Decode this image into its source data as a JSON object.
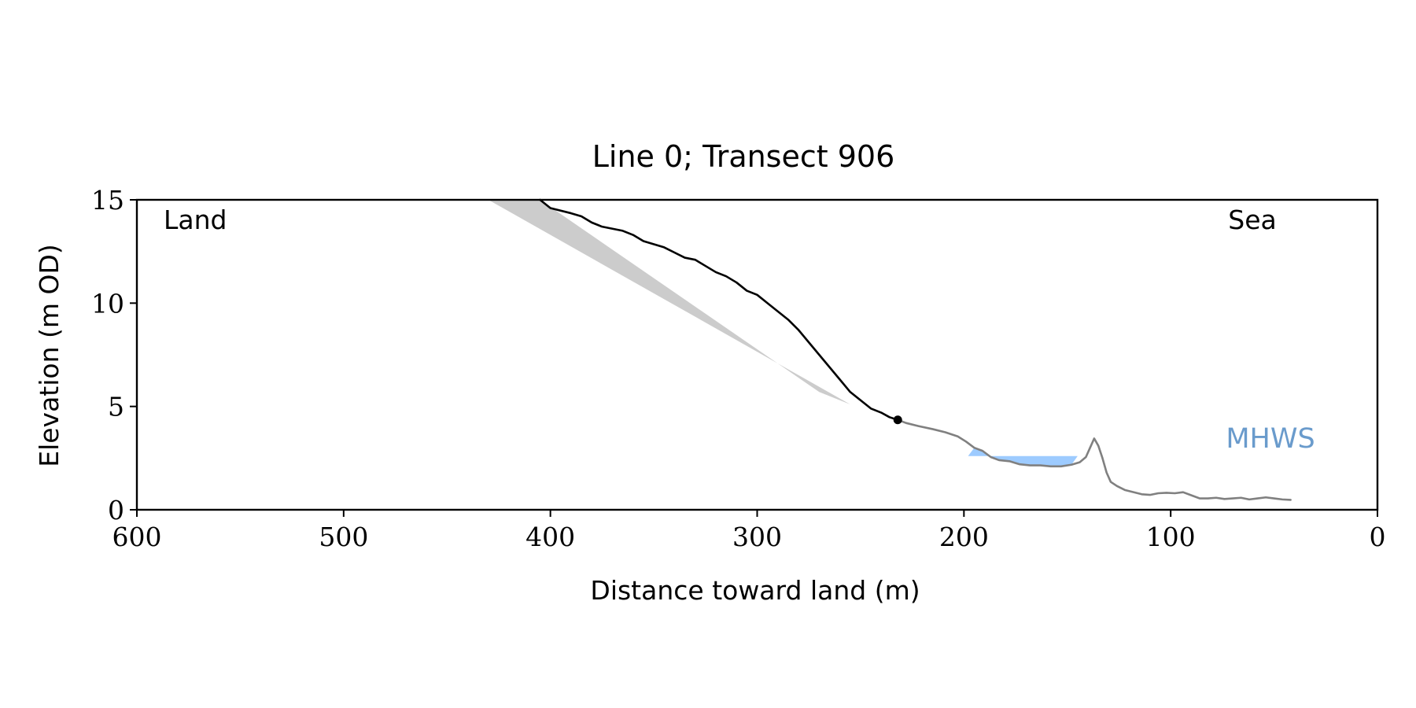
{
  "chart_data": {
    "type": "line",
    "title": "Line 0; Transect 906",
    "xlabel": "Distance toward land (m)",
    "ylabel": "Elevation (m OD)",
    "xlim": [
      600,
      0
    ],
    "ylim": [
      0,
      15
    ],
    "x_ticks": [
      600,
      500,
      400,
      300,
      200,
      100,
      0
    ],
    "y_ticks": [
      0,
      5,
      10,
      15
    ],
    "grid": false,
    "annotations": {
      "land": "Land",
      "sea": "Sea",
      "mhws": "MHWS"
    },
    "colors": {
      "cliff": "#000000",
      "foreshore": "#808080",
      "shade": "#cccccc",
      "water": "#9dcbff",
      "mhws_text": "#6a9bcc"
    },
    "series": [
      {
        "values": [
          [
            405,
            15.0
          ],
          [
            400,
            14.6
          ],
          [
            390,
            14.35
          ],
          [
            385,
            14.2
          ],
          [
            380,
            13.9
          ],
          [
            375,
            13.7
          ],
          [
            365,
            13.5
          ],
          [
            360,
            13.3
          ],
          [
            355,
            13.0
          ],
          [
            345,
            12.7
          ],
          [
            340,
            12.45
          ],
          [
            335,
            12.2
          ],
          [
            330,
            12.1
          ],
          [
            325,
            11.8
          ],
          [
            320,
            11.5
          ],
          [
            315,
            11.3
          ],
          [
            310,
            11.0
          ],
          [
            305,
            10.6
          ],
          [
            300,
            10.4
          ],
          [
            295,
            10.0
          ],
          [
            290,
            9.6
          ],
          [
            285,
            9.2
          ],
          [
            280,
            8.7
          ],
          [
            275,
            8.1
          ],
          [
            270,
            7.5
          ],
          [
            265,
            6.9
          ],
          [
            260,
            6.3
          ],
          [
            255,
            5.7
          ],
          [
            250,
            5.3
          ],
          [
            245,
            4.9
          ],
          [
            240,
            4.7
          ],
          [
            236,
            4.48
          ],
          [
            232,
            4.35
          ]
        ]
      },
      {
        "values": [
          [
            232,
            4.35
          ],
          [
            228,
            4.2
          ],
          [
            222,
            4.05
          ],
          [
            215,
            3.9
          ],
          [
            209,
            3.75
          ],
          [
            203,
            3.55
          ],
          [
            199,
            3.3
          ],
          [
            195,
            3.0
          ],
          [
            191,
            2.85
          ],
          [
            187,
            2.55
          ],
          [
            183,
            2.4
          ],
          [
            178,
            2.35
          ],
          [
            173,
            2.2
          ],
          [
            168,
            2.15
          ],
          [
            163,
            2.15
          ],
          [
            158,
            2.1
          ],
          [
            153,
            2.1
          ],
          [
            148,
            2.18
          ],
          [
            144,
            2.3
          ],
          [
            141,
            2.55
          ],
          [
            139,
            3.0
          ],
          [
            137,
            3.45
          ],
          [
            135,
            3.1
          ],
          [
            133,
            2.5
          ],
          [
            131,
            1.8
          ],
          [
            129,
            1.35
          ],
          [
            126,
            1.15
          ],
          [
            122,
            0.95
          ],
          [
            118,
            0.85
          ],
          [
            114,
            0.75
          ],
          [
            110,
            0.72
          ],
          [
            106,
            0.8
          ],
          [
            102,
            0.82
          ],
          [
            98,
            0.8
          ],
          [
            94,
            0.85
          ],
          [
            90,
            0.7
          ],
          [
            86,
            0.55
          ],
          [
            82,
            0.55
          ],
          [
            78,
            0.58
          ],
          [
            74,
            0.52
          ],
          [
            70,
            0.55
          ],
          [
            66,
            0.58
          ],
          [
            62,
            0.5
          ],
          [
            58,
            0.55
          ],
          [
            54,
            0.6
          ],
          [
            50,
            0.55
          ],
          [
            46,
            0.5
          ],
          [
            42,
            0.48
          ]
        ]
      }
    ],
    "marker": {
      "x": 232,
      "y": 4.35
    },
    "shaded_region": {
      "x": [
        430,
        405,
        270,
        255
      ],
      "y": [
        15.0,
        15.0,
        5.7,
        5.1
      ]
    },
    "water_region": {
      "x": [
        198,
        145
      ],
      "y_top": 2.6
    }
  }
}
